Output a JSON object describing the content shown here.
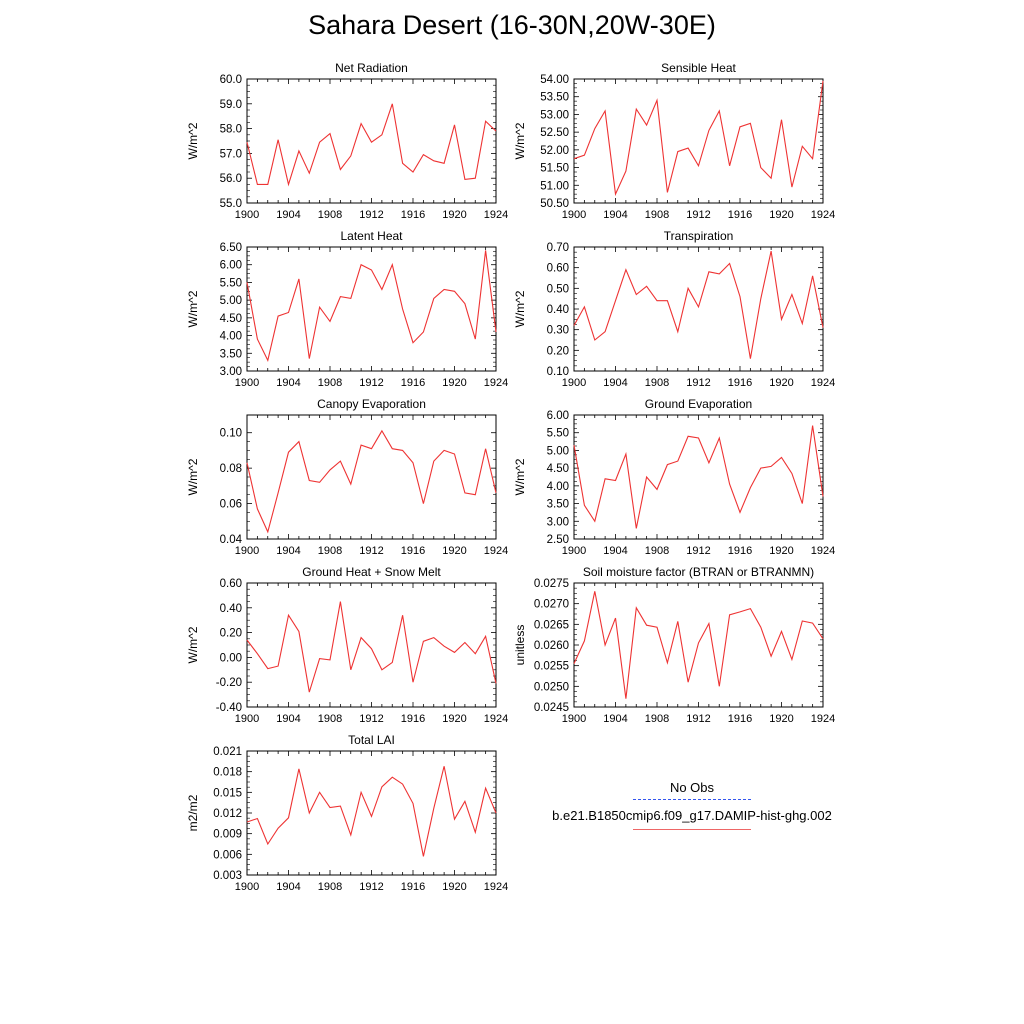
{
  "page_title": "Sahara Desert (16-30N,20W-30E)",
  "legend": {
    "obs_label": "No Obs",
    "model_label": "b.e21.B1850cmip6.f09_g17.DAMIP-hist-ghg.002",
    "obs_color": "#3355ee",
    "model_color": "#ee3333"
  },
  "chart_data": [
    {
      "type": "line",
      "title": "Net Radiation",
      "ylabel": "W/m^2",
      "xlim": [
        1900,
        1924
      ],
      "ylim": [
        55.0,
        60.0
      ],
      "xticks": [
        "1900",
        "1904",
        "1908",
        "1912",
        "1916",
        "1920",
        "1924"
      ],
      "yticks": [
        "55.0",
        "56.0",
        "57.0",
        "58.0",
        "59.0",
        "60.0"
      ],
      "x": [
        1900,
        1901,
        1902,
        1903,
        1904,
        1905,
        1906,
        1907,
        1908,
        1909,
        1910,
        1911,
        1912,
        1913,
        1914,
        1915,
        1916,
        1917,
        1918,
        1919,
        1920,
        1921,
        1922,
        1923,
        1924
      ],
      "series": [
        {
          "values": [
            57.45,
            55.75,
            55.75,
            57.55,
            55.75,
            57.1,
            56.2,
            57.45,
            57.8,
            56.35,
            56.9,
            58.2,
            57.45,
            57.75,
            59.0,
            56.6,
            56.25,
            56.95,
            56.7,
            56.6,
            58.15,
            55.95,
            56.0,
            58.3,
            57.9
          ]
        }
      ]
    },
    {
      "type": "line",
      "title": "Sensible Heat",
      "ylabel": "W/m^2",
      "xlim": [
        1900,
        1924
      ],
      "ylim": [
        50.5,
        54.0
      ],
      "xticks": [
        "1900",
        "1904",
        "1908",
        "1912",
        "1916",
        "1920",
        "1924"
      ],
      "yticks": [
        "50.50",
        "51.00",
        "51.50",
        "52.00",
        "52.50",
        "53.00",
        "53.50",
        "54.00"
      ],
      "x": [
        1900,
        1901,
        1902,
        1903,
        1904,
        1905,
        1906,
        1907,
        1908,
        1909,
        1910,
        1911,
        1912,
        1913,
        1914,
        1915,
        1916,
        1917,
        1918,
        1919,
        1920,
        1921,
        1922,
        1923,
        1924
      ],
      "series": [
        {
          "values": [
            51.75,
            51.85,
            52.6,
            53.1,
            50.75,
            51.4,
            53.15,
            52.7,
            53.4,
            50.8,
            51.95,
            52.05,
            51.55,
            52.55,
            53.1,
            51.55,
            52.65,
            52.75,
            51.5,
            51.2,
            52.85,
            50.95,
            52.1,
            51.75,
            53.95
          ]
        }
      ]
    },
    {
      "type": "line",
      "title": "Latent Heat",
      "ylabel": "W/m^2",
      "xlim": [
        1900,
        1924
      ],
      "ylim": [
        3.0,
        6.5
      ],
      "xticks": [
        "1900",
        "1904",
        "1908",
        "1912",
        "1916",
        "1920",
        "1924"
      ],
      "yticks": [
        "3.00",
        "3.50",
        "4.00",
        "4.50",
        "5.00",
        "5.50",
        "6.00",
        "6.50"
      ],
      "x": [
        1900,
        1901,
        1902,
        1903,
        1904,
        1905,
        1906,
        1907,
        1908,
        1909,
        1910,
        1911,
        1912,
        1913,
        1914,
        1915,
        1916,
        1917,
        1918,
        1919,
        1920,
        1921,
        1922,
        1923,
        1924
      ],
      "series": [
        {
          "values": [
            5.5,
            3.9,
            3.3,
            4.55,
            4.65,
            5.6,
            3.35,
            4.8,
            4.4,
            5.1,
            5.05,
            6.0,
            5.85,
            5.3,
            6.0,
            4.75,
            3.8,
            4.1,
            5.05,
            5.3,
            5.25,
            4.9,
            3.9,
            6.4,
            4.1
          ]
        }
      ]
    },
    {
      "type": "line",
      "title": "Transpiration",
      "ylabel": "W/m^2",
      "xlim": [
        1900,
        1924
      ],
      "ylim": [
        0.1,
        0.7
      ],
      "xticks": [
        "1900",
        "1904",
        "1908",
        "1912",
        "1916",
        "1920",
        "1924"
      ],
      "yticks": [
        "0.10",
        "0.20",
        "0.30",
        "0.40",
        "0.50",
        "0.60",
        "0.70"
      ],
      "x": [
        1900,
        1901,
        1902,
        1903,
        1904,
        1905,
        1906,
        1907,
        1908,
        1909,
        1910,
        1911,
        1912,
        1913,
        1914,
        1915,
        1916,
        1917,
        1918,
        1919,
        1920,
        1921,
        1922,
        1923,
        1924
      ],
      "series": [
        {
          "values": [
            0.32,
            0.41,
            0.25,
            0.29,
            0.44,
            0.59,
            0.47,
            0.51,
            0.44,
            0.44,
            0.29,
            0.5,
            0.41,
            0.58,
            0.57,
            0.62,
            0.46,
            0.16,
            0.45,
            0.68,
            0.35,
            0.47,
            0.33,
            0.56,
            0.31
          ]
        }
      ]
    },
    {
      "type": "line",
      "title": "Canopy Evaporation",
      "ylabel": "W/m^2",
      "xlim": [
        1900,
        1924
      ],
      "ylim": [
        0.04,
        0.11
      ],
      "xticks": [
        "1900",
        "1904",
        "1908",
        "1912",
        "1916",
        "1920",
        "1924"
      ],
      "yticks": [
        "0.04",
        "0.06",
        "0.08",
        "0.10"
      ],
      "x": [
        1900,
        1901,
        1902,
        1903,
        1904,
        1905,
        1906,
        1907,
        1908,
        1909,
        1910,
        1911,
        1912,
        1913,
        1914,
        1915,
        1916,
        1917,
        1918,
        1919,
        1920,
        1921,
        1922,
        1923,
        1924
      ],
      "series": [
        {
          "values": [
            0.083,
            0.057,
            0.044,
            0.066,
            0.089,
            0.095,
            0.073,
            0.072,
            0.079,
            0.084,
            0.071,
            0.093,
            0.091,
            0.101,
            0.091,
            0.09,
            0.083,
            0.06,
            0.084,
            0.09,
            0.088,
            0.066,
            0.065,
            0.091,
            0.066
          ]
        }
      ]
    },
    {
      "type": "line",
      "title": "Ground Evaporation",
      "ylabel": "W/m^2",
      "xlim": [
        1900,
        1924
      ],
      "ylim": [
        2.5,
        6.0
      ],
      "xticks": [
        "1900",
        "1904",
        "1908",
        "1912",
        "1916",
        "1920",
        "1924"
      ],
      "yticks": [
        "2.50",
        "3.00",
        "3.50",
        "4.00",
        "4.50",
        "5.00",
        "5.50",
        "6.00"
      ],
      "x": [
        1900,
        1901,
        1902,
        1903,
        1904,
        1905,
        1906,
        1907,
        1908,
        1909,
        1910,
        1911,
        1912,
        1913,
        1914,
        1915,
        1916,
        1917,
        1918,
        1919,
        1920,
        1921,
        1922,
        1923,
        1924
      ],
      "series": [
        {
          "values": [
            5.15,
            3.45,
            3.0,
            4.2,
            4.15,
            4.9,
            2.8,
            4.25,
            3.9,
            4.6,
            4.7,
            5.4,
            5.35,
            4.65,
            5.35,
            4.05,
            3.25,
            3.95,
            4.5,
            4.55,
            4.8,
            4.35,
            3.5,
            5.7,
            3.7
          ]
        }
      ]
    },
    {
      "type": "line",
      "title": "Ground Heat + Snow Melt",
      "ylabel": "W/m^2",
      "xlim": [
        1900,
        1924
      ],
      "ylim": [
        -0.4,
        0.6
      ],
      "xticks": [
        "1900",
        "1904",
        "1908",
        "1912",
        "1916",
        "1920",
        "1924"
      ],
      "yticks": [
        "-0.40",
        "-0.20",
        "0.00",
        "0.20",
        "0.40",
        "0.60"
      ],
      "x": [
        1900,
        1901,
        1902,
        1903,
        1904,
        1905,
        1906,
        1907,
        1908,
        1909,
        1910,
        1911,
        1912,
        1913,
        1914,
        1915,
        1916,
        1917,
        1918,
        1919,
        1920,
        1921,
        1922,
        1923,
        1924
      ],
      "series": [
        {
          "values": [
            0.14,
            0.03,
            -0.09,
            -0.07,
            0.34,
            0.21,
            -0.28,
            -0.01,
            -0.02,
            0.45,
            -0.1,
            0.16,
            0.07,
            -0.1,
            -0.04,
            0.34,
            -0.2,
            0.13,
            0.16,
            0.09,
            0.04,
            0.12,
            0.03,
            0.17,
            -0.21
          ]
        }
      ]
    },
    {
      "type": "line",
      "title": "Soil moisture factor (BTRAN or BTRANMN)",
      "ylabel": "unitless",
      "xlim": [
        1900,
        1924
      ],
      "ylim": [
        0.0245,
        0.0275
      ],
      "xticks": [
        "1900",
        "1904",
        "1908",
        "1912",
        "1916",
        "1920",
        "1924"
      ],
      "yticks": [
        "0.0245",
        "0.0250",
        "0.0255",
        "0.0260",
        "0.0265",
        "0.0270",
        "0.0275"
      ],
      "x": [
        1900,
        1901,
        1902,
        1903,
        1904,
        1905,
        1906,
        1907,
        1908,
        1909,
        1910,
        1911,
        1912,
        1913,
        1914,
        1915,
        1916,
        1917,
        1918,
        1919,
        1920,
        1921,
        1922,
        1923,
        1924
      ],
      "series": [
        {
          "values": [
            0.02555,
            0.0261,
            0.0273,
            0.026,
            0.02665,
            0.0247,
            0.0269,
            0.02648,
            0.02643,
            0.02557,
            0.02657,
            0.0251,
            0.02605,
            0.02652,
            0.025,
            0.02673,
            0.0268,
            0.02688,
            0.02643,
            0.02573,
            0.02633,
            0.02565,
            0.02658,
            0.02653,
            0.02615
          ]
        }
      ]
    },
    {
      "type": "line",
      "title": "Total LAI",
      "ylabel": "m2/m2",
      "xlim": [
        1900,
        1924
      ],
      "ylim": [
        0.003,
        0.021
      ],
      "xticks": [
        "1900",
        "1904",
        "1908",
        "1912",
        "1916",
        "1920",
        "1924"
      ],
      "yticks": [
        "0.003",
        "0.006",
        "0.009",
        "0.012",
        "0.015",
        "0.018",
        "0.021"
      ],
      "x": [
        1900,
        1901,
        1902,
        1903,
        1904,
        1905,
        1906,
        1907,
        1908,
        1909,
        1910,
        1911,
        1912,
        1913,
        1914,
        1915,
        1916,
        1917,
        1918,
        1919,
        1920,
        1921,
        1922,
        1923,
        1924
      ],
      "series": [
        {
          "values": [
            0.0107,
            0.0112,
            0.0075,
            0.0098,
            0.0113,
            0.0184,
            0.012,
            0.015,
            0.0128,
            0.013,
            0.0088,
            0.015,
            0.0115,
            0.0158,
            0.0172,
            0.0162,
            0.0134,
            0.0057,
            0.0127,
            0.0188,
            0.0111,
            0.0137,
            0.0092,
            0.0156,
            0.012
          ]
        }
      ]
    }
  ]
}
